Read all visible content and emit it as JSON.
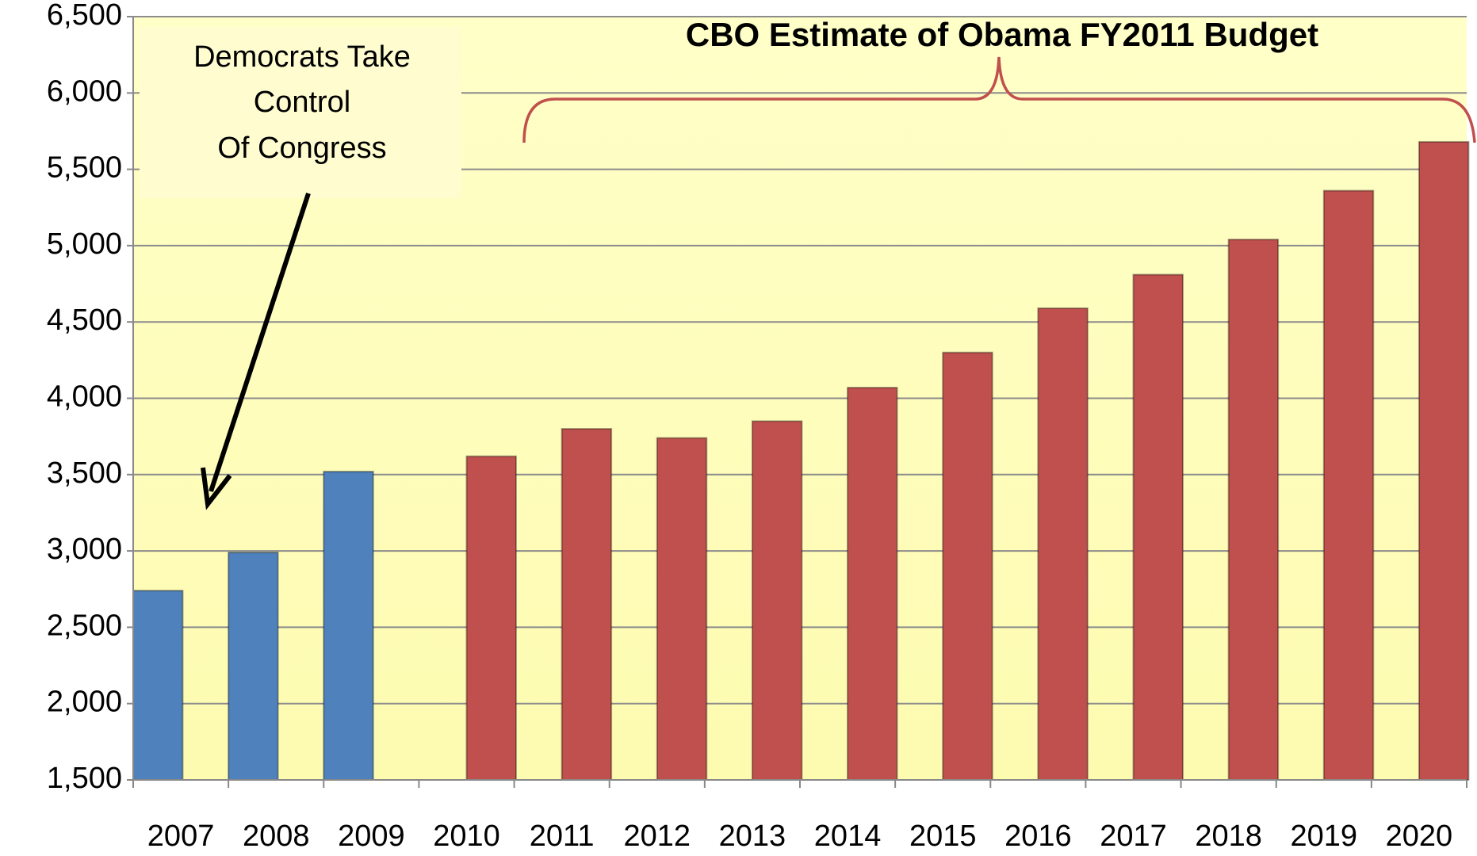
{
  "chart_data": {
    "type": "bar",
    "annotations": [
      "Democrats Take",
      "Control",
      "Of Congress",
      "CBO Estimate of Obama FY2011 Budget"
    ],
    "categories": [
      "2007",
      "2008",
      "2009",
      "2010",
      "2011",
      "2012",
      "2013",
      "2014",
      "2015",
      "2016",
      "2017",
      "2018",
      "2019",
      "2020"
    ],
    "series": [
      {
        "color": "#4f81bd",
        "values": [
          2740,
          2990,
          3520,
          null,
          null,
          null,
          null,
          null,
          null,
          null,
          null,
          null,
          null,
          null
        ]
      },
      {
        "color": "#c0504d",
        "values": [
          null,
          null,
          null,
          3620,
          3800,
          3740,
          3850,
          4070,
          4300,
          4590,
          4810,
          5040,
          5360,
          5680
        ]
      }
    ],
    "ylim": [
      1500,
      6500
    ],
    "yticks": [
      {
        "value": 1500,
        "label": "1,500"
      },
      {
        "value": 2000,
        "label": "2,000"
      },
      {
        "value": 2500,
        "label": "2,500"
      },
      {
        "value": 3000,
        "label": "3,000"
      },
      {
        "value": 3500,
        "label": "3,500"
      },
      {
        "value": 4000,
        "label": "4,000"
      },
      {
        "value": 4500,
        "label": "4,500"
      },
      {
        "value": 5000,
        "label": "5,000"
      },
      {
        "value": 5500,
        "label": "5,500"
      },
      {
        "value": 6000,
        "label": "6,000"
      },
      {
        "value": 6500,
        "label": "6,500"
      }
    ],
    "grid": true
  }
}
